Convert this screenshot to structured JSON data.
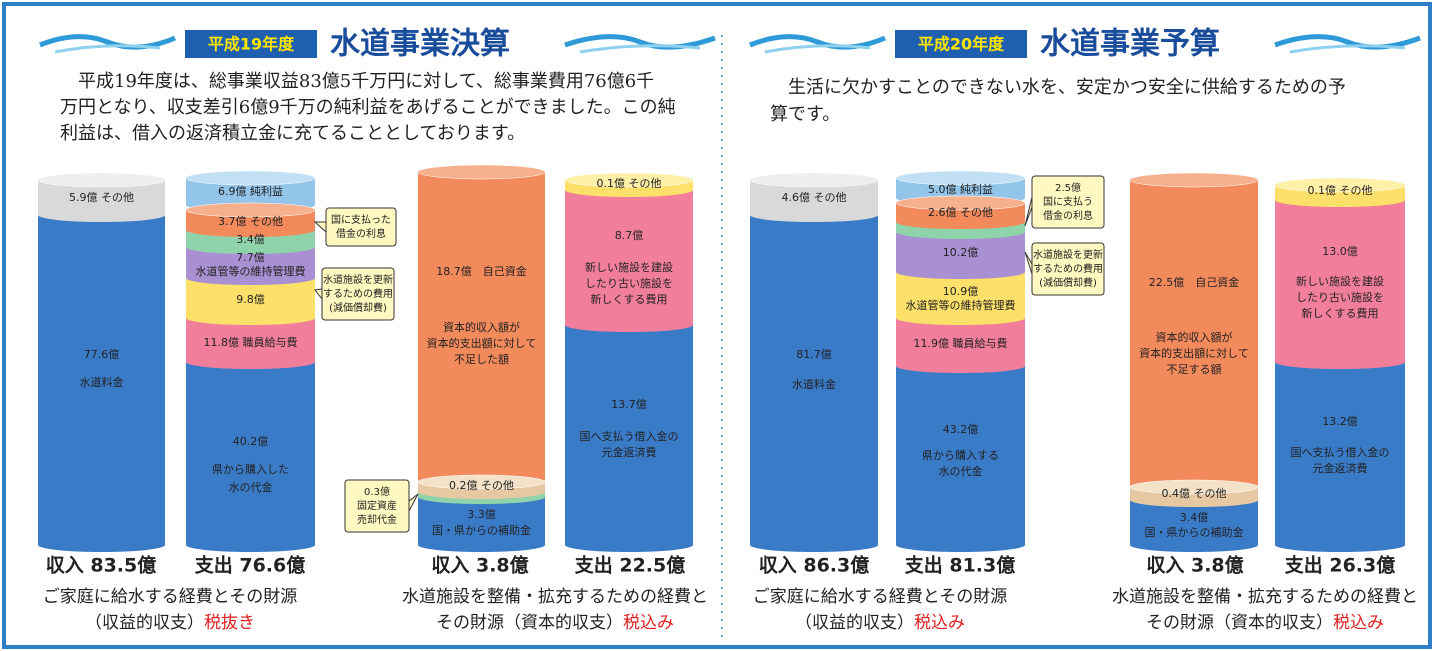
{
  "panels": [
    {
      "badge": "平成19年度",
      "title": "水道事業決算",
      "paragraph": [
        "　平成19年度は、総事業収益83億5千万円に対して、総事業費用76億6千",
        "万円となり、収支差引6億9千万の純利益をあげることができました。この純",
        "利益は、借入の返済積立金に充てることとしております。"
      ],
      "columns": [
        {
          "labels": [
            {
              "lines": [
                "5.9億 その他"
              ]
            },
            {
              "lines": [
                "77.6億",
                "水道料金"
              ]
            }
          ]
        },
        {
          "labels": [
            {
              "lines": [
                "6.9億 純利益"
              ]
            },
            {
              "lines": [
                "3.7億 その他"
              ]
            },
            {
              "lines": [
                "3.4億"
              ]
            },
            {
              "lines": [
                "7.7億",
                "水道管等の維持管理費"
              ]
            },
            {
              "lines": [
                "9.8億"
              ]
            },
            {
              "lines": [
                "11.8億 職員給与費"
              ]
            },
            {
              "lines": [
                "40.2億",
                "県から購入した",
                "水の代金"
              ]
            }
          ]
        },
        {
          "labels": [
            {
              "lines": [
                "18.7億　自己資金"
              ]
            },
            {
              "lines": [
                "資本的収入額が",
                "資本的支出額に対して",
                "不足した額"
              ]
            },
            {
              "lines": [
                "0.2億 その他"
              ]
            },
            {
              "lines": [
                "3.3億",
                "国・県からの補助金"
              ]
            }
          ]
        },
        {
          "labels": [
            {
              "lines": [
                "0.1億 その他"
              ]
            },
            {
              "lines": [
                "8.7億"
              ]
            },
            {
              "lines": [
                "新しい施設を建設",
                "したり古い施設を",
                "新しくする費用"
              ]
            },
            {
              "lines": [
                "13.7億"
              ]
            },
            {
              "lines": [
                "国へ支払う借入金の",
                "元金返済費"
              ]
            }
          ]
        }
      ],
      "callouts": [
        {
          "lines": [
            "国に支払った",
            "借金の利息"
          ]
        },
        {
          "lines": [
            "水道施設を更新",
            "するための費用",
            "(減価償却費)"
          ]
        },
        {
          "lines": [
            "0.3億",
            "固定資産",
            "売却代金"
          ]
        }
      ],
      "totals": [
        "収入 83.5億",
        "支出 76.6億",
        "収入 3.8億",
        "支出 22.5億"
      ],
      "captions": [
        {
          "lines": [
            {
              "text": "ご家庭に給水する経費とその財源"
            },
            {
              "text": "（収益的収支）",
              "tag": "税抜き"
            }
          ]
        },
        {
          "lines": [
            {
              "text": "水道施設を整備・拡充するための経費と"
            },
            {
              "text": "その財源（資本的収支）",
              "tag": "税込み"
            }
          ]
        }
      ]
    },
    {
      "badge": "平成20年度",
      "title": "水道事業予算",
      "paragraph": [
        "　生活に欠かすことのできない水を、安定かつ安全に供給するための予",
        "算です。"
      ],
      "columns": [
        {
          "labels": [
            {
              "lines": [
                "4.6億 その他"
              ]
            },
            {
              "lines": [
                "81.7億",
                "水道料金"
              ]
            }
          ]
        },
        {
          "labels": [
            {
              "lines": [
                "5.0億 純利益"
              ]
            },
            {
              "lines": [
                "2.6億 その他"
              ]
            },
            {
              "lines": [
                "10.2億"
              ]
            },
            {
              "lines": [
                "10.9億",
                "水道管等の維持管理費"
              ]
            },
            {
              "lines": [
                "11.9億 職員給与費"
              ]
            },
            {
              "lines": [
                "43.2億",
                "県から購入する",
                "水の代金"
              ]
            }
          ]
        },
        {
          "labels": [
            {
              "lines": [
                "22.5億　自己資金"
              ]
            },
            {
              "lines": [
                "資本的収入額が",
                "資本的支出額に対して",
                "不足する額"
              ]
            },
            {
              "lines": [
                "0.4億 その他"
              ]
            },
            {
              "lines": [
                "3.4億",
                "国・県からの補助金"
              ]
            }
          ]
        },
        {
          "labels": [
            {
              "lines": [
                "0.1億 その他"
              ]
            },
            {
              "lines": [
                "13.0億"
              ]
            },
            {
              "lines": [
                "新しい施設を建設",
                "したり古い施設を",
                "新しくする費用"
              ]
            },
            {
              "lines": [
                "13.2億"
              ]
            },
            {
              "lines": [
                "国へ支払う借入金の",
                "元金返済費"
              ]
            }
          ]
        }
      ],
      "callouts": [
        {
          "lines": [
            "2.5億",
            "国に支払う",
            "借金の利息"
          ]
        },
        {
          "lines": [
            "水道施設を更新",
            "するための費用",
            "(減価償却費)"
          ]
        }
      ],
      "totals": [
        "収入 86.3億",
        "支出 81.3億",
        "収入 3.8億",
        "支出 26.3億"
      ],
      "captions": [
        {
          "lines": [
            {
              "text": "ご家庭に給水する経費とその財源"
            },
            {
              "text": "（収益的収支）",
              "tag": "税込み"
            }
          ]
        },
        {
          "lines": [
            {
              "text": "水道施設を整備・拡充するための経費と"
            },
            {
              "text": "その財源（資本的収支）",
              "tag": "税込み"
            }
          ]
        }
      ]
    }
  ]
}
